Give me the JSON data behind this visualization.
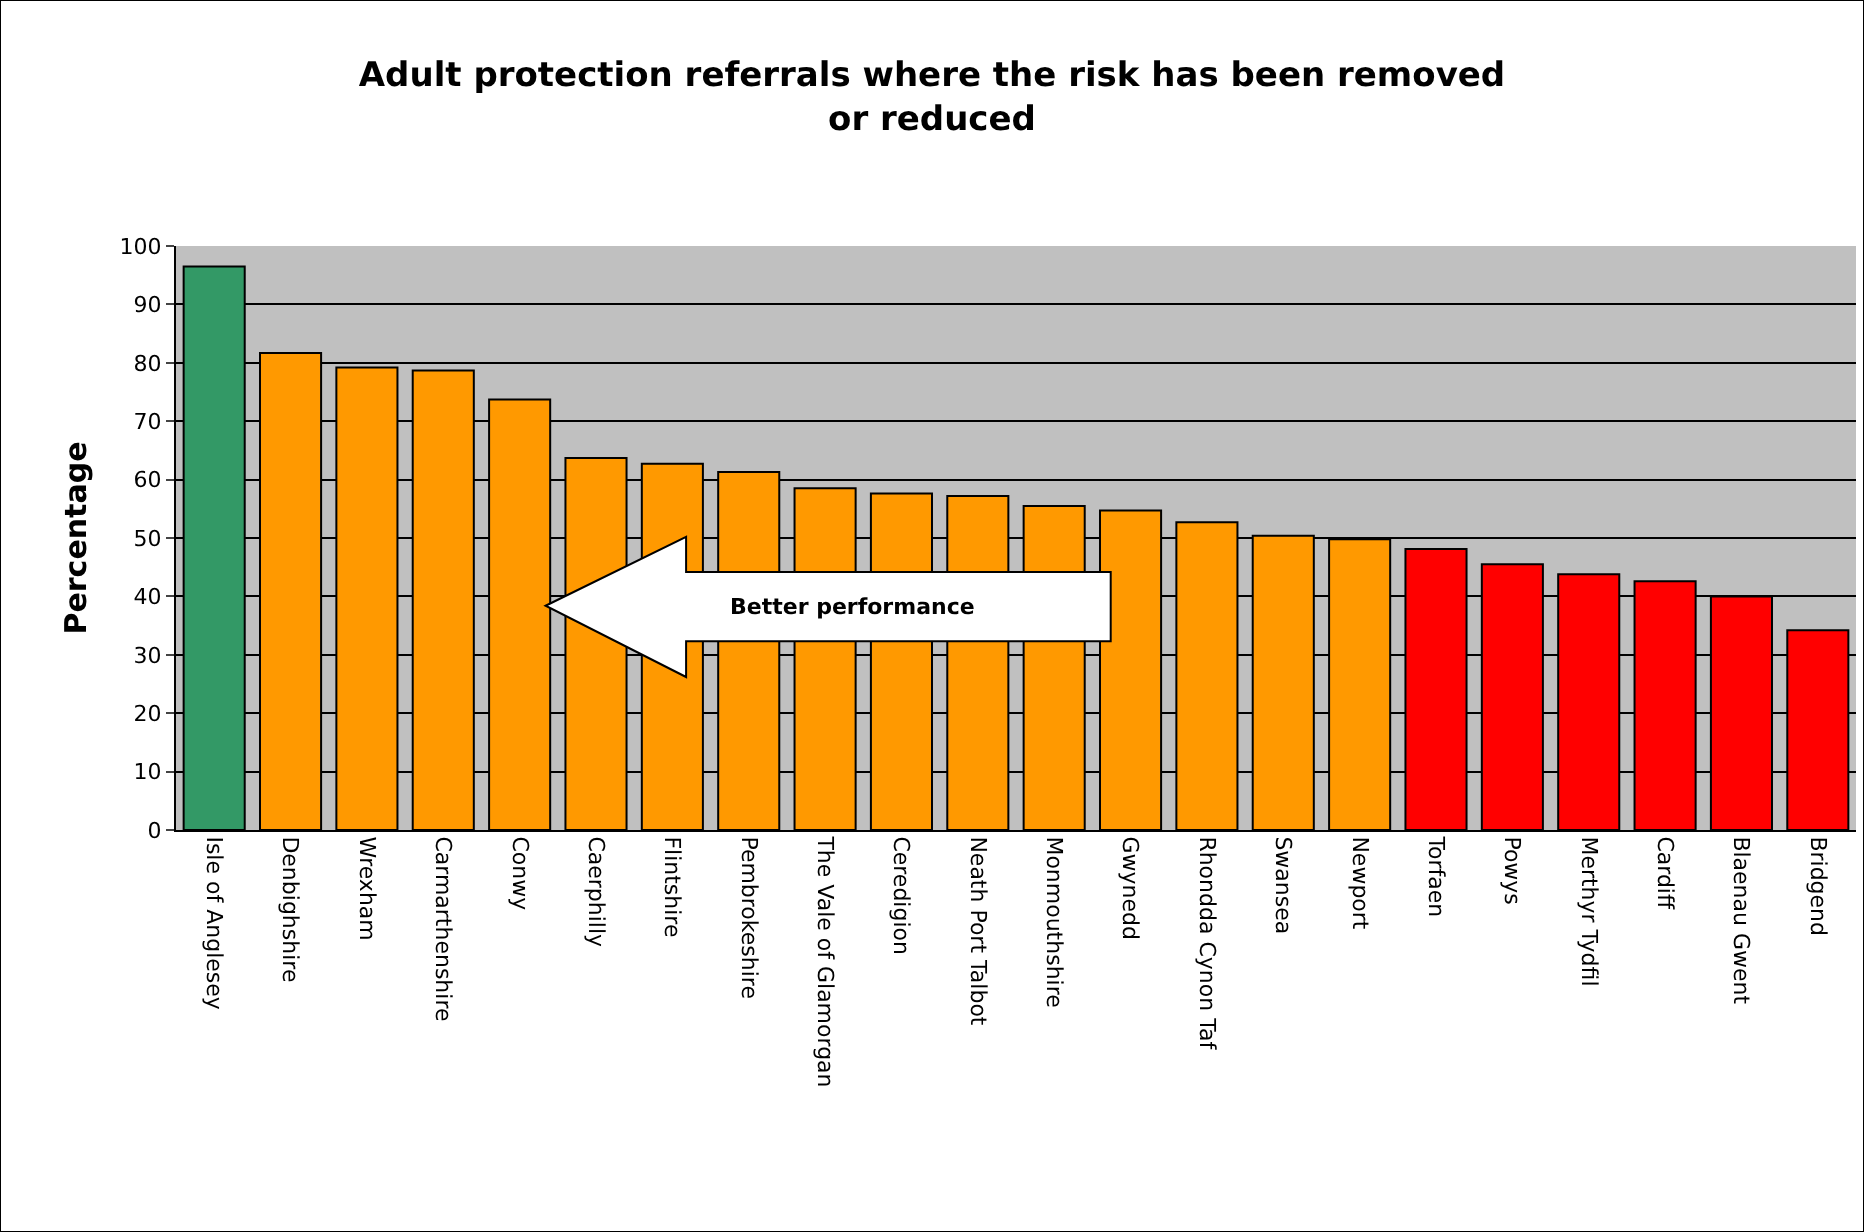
{
  "chart_data": {
    "type": "bar",
    "title": "Adult protection referrals where the risk has been removed or reduced",
    "ylabel": "Percentage",
    "categories": [
      "Isle of Anglesey",
      "Denbighshire",
      "Wrexham",
      "Carmarthenshire",
      "Conwy",
      "Caerphilly",
      "Flintshire",
      "Pembrokeshire",
      "The Vale of Glamorgan",
      "Ceredigion",
      "Neath Port Talbot",
      "Monmouthshire",
      "Gwynedd",
      "Rhondda Cynon Taf",
      "Swansea",
      "Newport",
      "Torfaen",
      "Powys",
      "Merthyr Tydfil",
      "Cardiff",
      "Blaenau Gwent",
      "Bridgend"
    ],
    "values": [
      96.5,
      81.7,
      79.2,
      78.7,
      73.7,
      63.7,
      62.7,
      61.3,
      58.5,
      57.6,
      57.2,
      55.5,
      54.7,
      52.7,
      50.4,
      49.8,
      48.1,
      45.5,
      43.8,
      42.6,
      40.0,
      34.2
    ],
    "colors": [
      "#339966",
      "#ff9900",
      "#ff9900",
      "#ff9900",
      "#ff9900",
      "#ff9900",
      "#ff9900",
      "#ff9900",
      "#ff9900",
      "#ff9900",
      "#ff9900",
      "#ff9900",
      "#ff9900",
      "#ff9900",
      "#ff9900",
      "#ff9900",
      "#ff0000",
      "#ff0000",
      "#ff0000",
      "#ff0000",
      "#ff0000",
      "#ff0000"
    ],
    "ylim": [
      0,
      100
    ],
    "yticks": [
      0,
      10,
      20,
      30,
      40,
      50,
      60,
      70,
      80,
      90,
      100
    ],
    "grid": "y",
    "annotations": [
      "Better performance"
    ]
  }
}
